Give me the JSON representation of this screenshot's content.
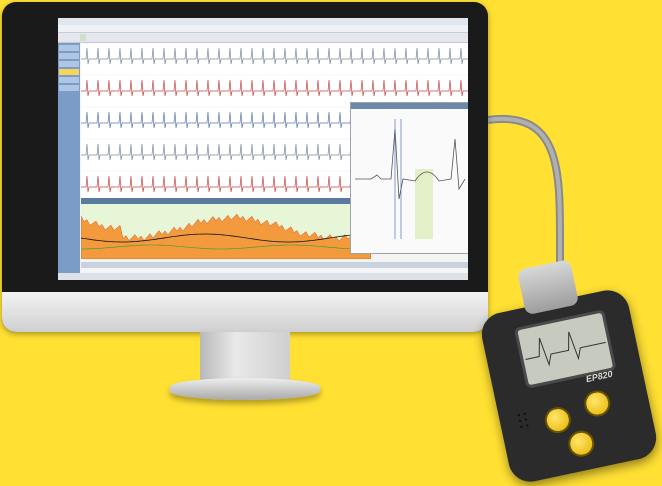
{
  "scene": {
    "background_color": "#ffe033",
    "monitor_bezel_color": "#1a1a1a",
    "device_body_color": "#2b2b2b",
    "device_button_color": "#f5c400"
  },
  "software": {
    "title_text": "",
    "menu_items": [
      "",
      "",
      "",
      "",
      "",
      "",
      "",
      "",
      "",
      "",
      "",
      "",
      ""
    ],
    "active_tab": "",
    "sidebar_items": [
      "",
      "",
      "",
      "",
      "",
      ""
    ],
    "detail_panel_title": "",
    "trend_header": "",
    "status_left": "",
    "status_right": ""
  },
  "device": {
    "model_label": "EP820"
  }
}
